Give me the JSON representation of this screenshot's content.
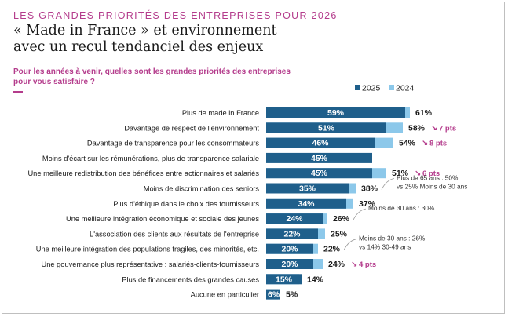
{
  "header": {
    "kicker": "LES GRANDES PRIORITÉS DES ENTREPRISES POUR 2026",
    "title_line1": "« Made in France » et environnement",
    "title_line2": "avec un recul tendanciel des enjeux",
    "question": "Pour les années à venir, quelles sont les grandes priorités des entreprises pour vous satisfaire ?"
  },
  "colors": {
    "series_2025": "#1f5f8b",
    "series_2024": "#8cc8ea",
    "accent": "#b43c8c",
    "text": "#1a1a1a"
  },
  "chart_data": {
    "type": "bar",
    "orientation": "horizontal",
    "title": "« Made in France » et environnement avec un recul tendanciel des enjeux",
    "legend_position": "top-right",
    "grid": false,
    "xlim": [
      0,
      70
    ],
    "categories": [
      "Plus de made in France",
      "Davantage de respect de l'environnement",
      "Davantage de transparence pour les consommateurs",
      "Moins d'écart sur les rémunérations, plus de transparence salariale",
      "Une meilleure redistribution des bénéfices entre actionnaires et salariés",
      "Moins de discrimination des seniors",
      "Plus d'éthique dans le choix des fournisseurs",
      "Une meilleure intégration économique et sociale des jeunes",
      "L'association des clients aux résultats de l'entreprise",
      "Une meilleure intégration des populations fragiles, des minorités, etc.",
      "Une gouvernance plus représentative : salariés-clients-fournisseurs",
      "Plus de financements des grandes causes",
      "Aucune en particulier"
    ],
    "series": [
      {
        "name": "2025",
        "values": [
          59,
          51,
          46,
          45,
          45,
          35,
          34,
          24,
          22,
          20,
          20,
          15,
          6
        ],
        "labels": [
          "59%",
          "51%",
          "46%",
          "45%",
          "45%",
          "35%",
          "34%",
          "24%",
          "22%",
          "20%",
          "20%",
          "15%",
          "6%"
        ]
      },
      {
        "name": "2024",
        "values": [
          61,
          58,
          54,
          null,
          51,
          38,
          37,
          26,
          25,
          22,
          24,
          14,
          5
        ],
        "labels": [
          "61%",
          "58%",
          "54%",
          "",
          "51%",
          "38%",
          "37%",
          "26%",
          "25%",
          "22%",
          "24%",
          "14%",
          "5%"
        ]
      }
    ],
    "changes": [
      {
        "index": 1,
        "label": "7 pts"
      },
      {
        "index": 2,
        "label": "8 pts"
      },
      {
        "index": 4,
        "label": "6 pts"
      },
      {
        "index": 10,
        "label": "4 pts"
      }
    ],
    "notes": [
      {
        "index": 5,
        "lines": [
          "Plus de 65 ans : 50%",
          "vs 25% Moins de 30 ans"
        ]
      },
      {
        "index": 7,
        "lines": [
          "Moins de 30 ans : 30%"
        ]
      },
      {
        "index": 9,
        "lines": [
          "Moins de 30 ans : 26%",
          "vs 14% 30-49 ans"
        ]
      }
    ]
  }
}
